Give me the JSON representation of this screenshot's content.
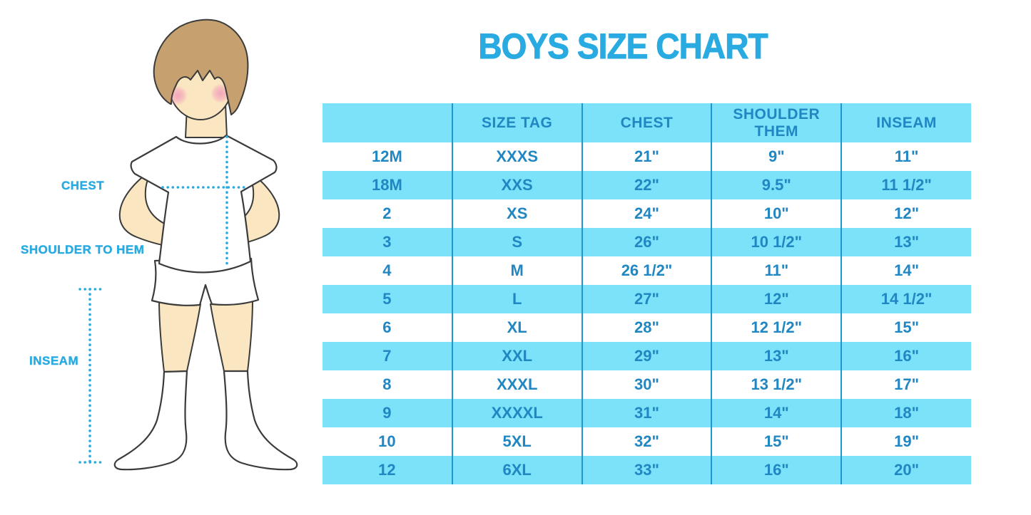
{
  "title": "BOYS SIZE CHART",
  "colors": {
    "accent": "#29ABE2",
    "band": "#7BE2F9",
    "ink": "#2187C3",
    "divider": "#1E96D1",
    "skin": "#FAE7C2",
    "hair": "#C6A06F",
    "outline": "#3B3B3B"
  },
  "diagram": {
    "labels": {
      "chest": "CHEST",
      "shoulder_to_hem": "SHOULDER TO HEM",
      "inseam": "INSEAM"
    }
  },
  "chart_data": {
    "type": "table",
    "title": "BOYS SIZE CHART",
    "columns": [
      "",
      "SIZE TAG",
      "CHEST",
      "SHOULDER THEM",
      "INSEAM"
    ],
    "rows": [
      [
        "12M",
        "XXXS",
        "21\"",
        "9\"",
        "11\""
      ],
      [
        "18M",
        "XXS",
        "22\"",
        "9.5\"",
        "11 1/2\""
      ],
      [
        "2",
        "XS",
        "24\"",
        "10\"",
        "12\""
      ],
      [
        "3",
        "S",
        "26\"",
        "10 1/2\"",
        "13\""
      ],
      [
        "4",
        "M",
        "26 1/2\"",
        "11\"",
        "14\""
      ],
      [
        "5",
        "L",
        "27\"",
        "12\"",
        "14 1/2\""
      ],
      [
        "6",
        "XL",
        "28\"",
        "12 1/2\"",
        "15\""
      ],
      [
        "7",
        "XXL",
        "29\"",
        "13\"",
        "16\""
      ],
      [
        "8",
        "XXXL",
        "30\"",
        "13 1/2\"",
        "17\""
      ],
      [
        "9",
        "XXXXL",
        "31\"",
        "14\"",
        "18\""
      ],
      [
        "10",
        "5XL",
        "32\"",
        "15\"",
        "19\""
      ],
      [
        "12",
        "6XL",
        "33\"",
        "16\"",
        "20\""
      ]
    ],
    "layout": {
      "stripe_pattern": "alternating white/cyan starting white",
      "header_background": "#7BE2F9",
      "grid": "vertical dividers only"
    }
  }
}
